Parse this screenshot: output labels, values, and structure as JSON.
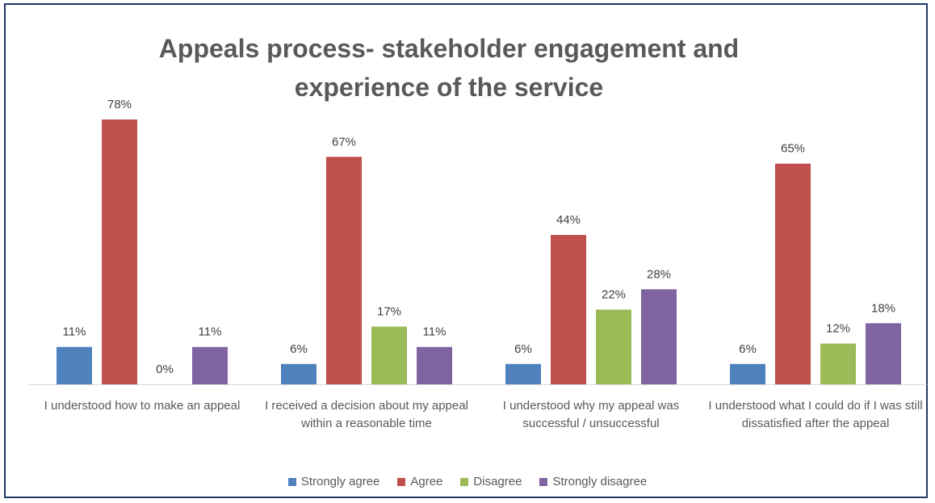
{
  "chart_data": {
    "type": "bar",
    "title": "Appeals process- stakeholder engagement and experience of the service",
    "categories": [
      "I understood how to make an appeal",
      "I received a decision about my appeal within a reasonable time",
      "I understood why my appeal was successful / unsuccessful",
      "I understood what I could do if I was still dissatisfied after the appeal"
    ],
    "series": [
      {
        "name": "Strongly agree",
        "color": "#4f81bd",
        "values": [
          11,
          6,
          6,
          6
        ],
        "value_labels": [
          "11%",
          "6%",
          "6%",
          "6%"
        ]
      },
      {
        "name": "Agree",
        "color": "#c0504d",
        "values": [
          78,
          67,
          44,
          65
        ],
        "value_labels": [
          "78%",
          "67%",
          "44%",
          "65%"
        ]
      },
      {
        "name": "Disagree",
        "color": "#9bbb59",
        "values": [
          0,
          17,
          22,
          12
        ],
        "value_labels": [
          "0%",
          "17%",
          "22%",
          "12%"
        ]
      },
      {
        "name": "Strongly disagree",
        "color": "#8064a2",
        "values": [
          11,
          11,
          28,
          18
        ],
        "value_labels": [
          "11%",
          "11%",
          "28%",
          "18%"
        ]
      }
    ],
    "legend": "bottom"
  }
}
